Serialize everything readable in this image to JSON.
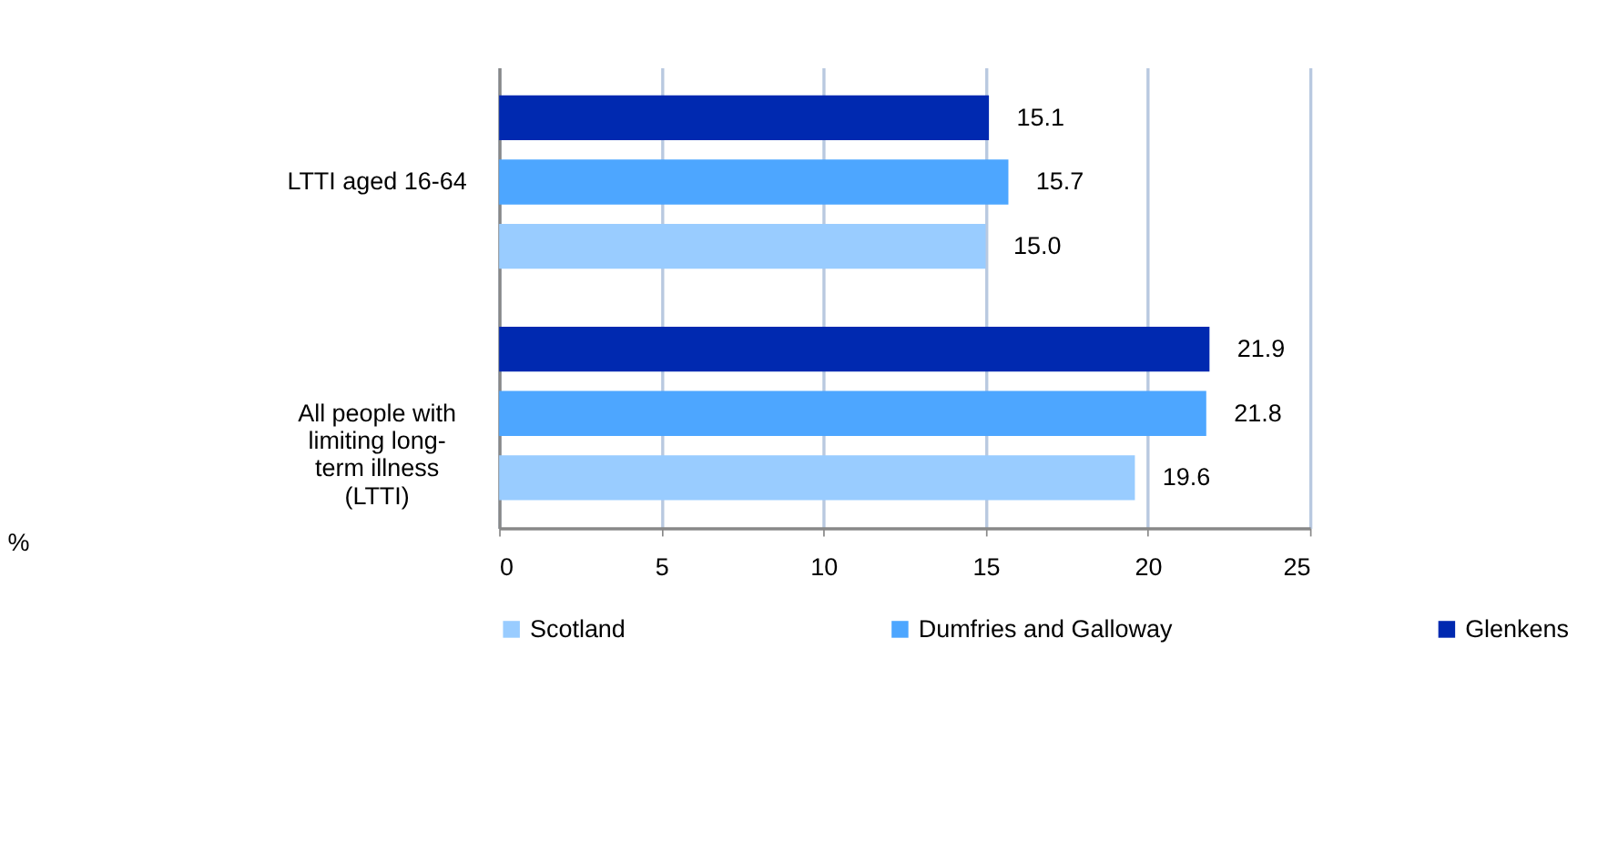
{
  "chart_data": {
    "type": "bar",
    "orientation": "horizontal",
    "annotations": [
      "%"
    ],
    "categories": [
      "LTTI aged 16-64",
      "All people with limiting long-term illness (LTTI)"
    ],
    "series": [
      {
        "name": "Scotland",
        "color": "#99ccff",
        "values": [
          15.0,
          19.6
        ],
        "value_labels": [
          "15.0",
          "19.6"
        ]
      },
      {
        "name": "Dumfries and Galloway",
        "color": "#4da6ff",
        "values": [
          15.7,
          21.8
        ],
        "value_labels": [
          "15.7",
          "21.8"
        ]
      },
      {
        "name": "Glenkens",
        "color": "#0029b0",
        "values": [
          15.1,
          21.9
        ],
        "value_labels": [
          "15.1",
          "21.9"
        ]
      }
    ],
    "xlim": [
      0,
      25
    ],
    "xticks": [
      0,
      5,
      10,
      15,
      20,
      25
    ],
    "grid": "x",
    "legend": "bottom"
  }
}
